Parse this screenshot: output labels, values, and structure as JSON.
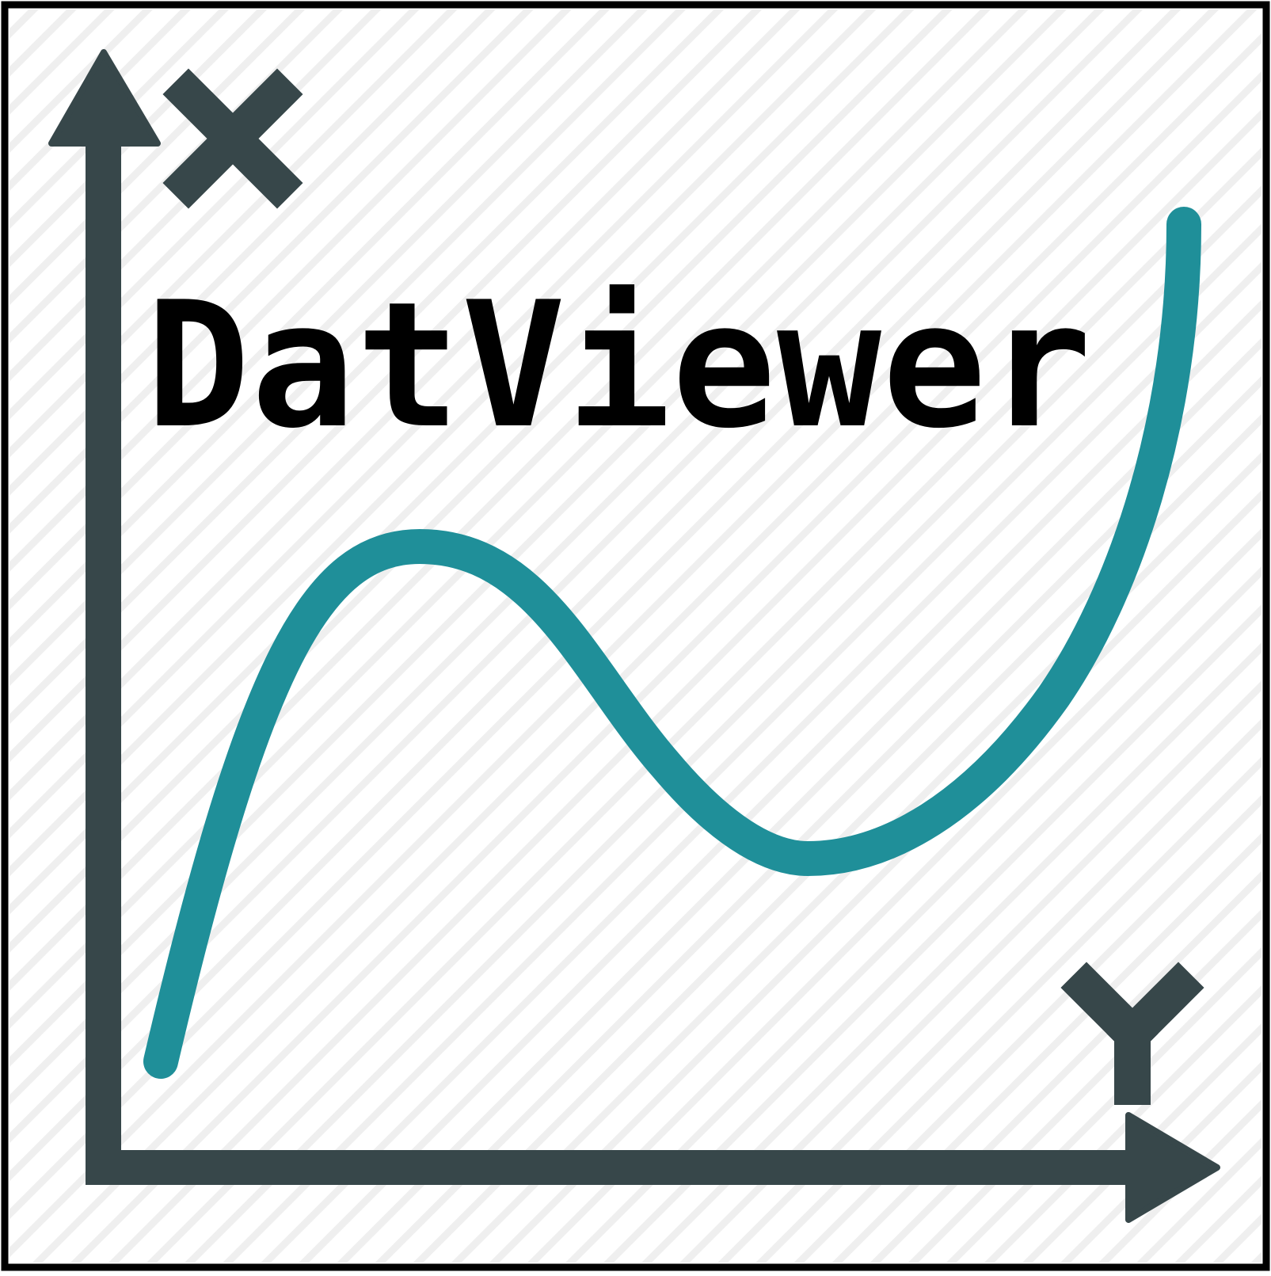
{
  "logo": {
    "title": "DatViewer",
    "axis_letters": [
      "X",
      "Y"
    ]
  },
  "colors": {
    "border": "#000000",
    "background": "#ffffff",
    "hatch": "#eeeeee",
    "axis": "#37474a",
    "curve": "#1f8f99",
    "title": "#000000"
  },
  "icons": [
    "x-axis-arrow-icon",
    "y-axis-arrow-icon",
    "x-letter-icon",
    "y-letter-icon",
    "curve-icon"
  ]
}
